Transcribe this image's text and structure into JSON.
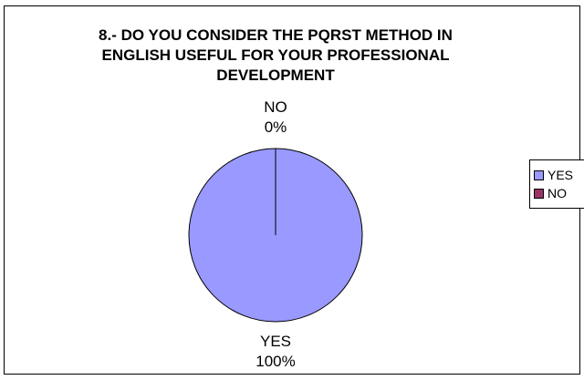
{
  "chart_data": {
    "type": "pie",
    "title_lines": [
      "8.- DO YOU CONSIDER THE PQRST METHOD IN",
      "ENGLISH USEFUL FOR YOUR PROFESSIONAL",
      "DEVELOPMENT"
    ],
    "slices": [
      {
        "label": "YES",
        "value": 100,
        "percent_label": "100%",
        "color": "#9999FF"
      },
      {
        "label": "NO",
        "value": 0,
        "percent_label": "0%",
        "color": "#993366"
      }
    ],
    "legend": {
      "placement": "right",
      "items": [
        {
          "label": "YES",
          "color": "#9999FF"
        },
        {
          "label": "NO",
          "color": "#993366"
        }
      ]
    }
  }
}
